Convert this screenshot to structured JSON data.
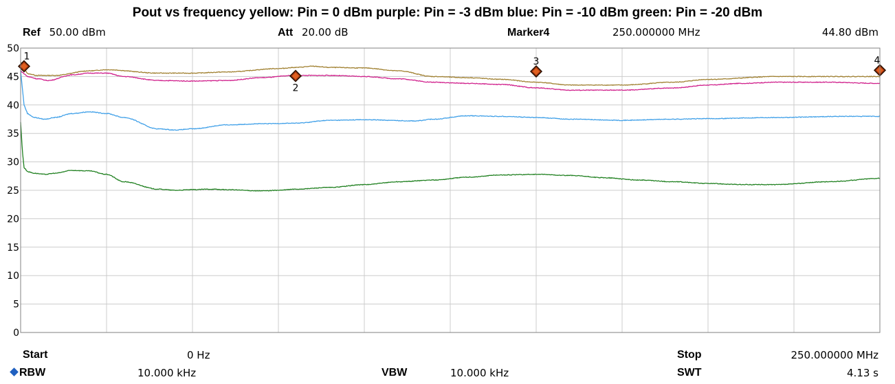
{
  "title": "Pout vs frequency     yellow: Pin = 0 dBm   purple: Pin = -3 dBm   blue: Pin = -10 dBm   green: Pin = -20 dBm",
  "header": {
    "ref_label": "Ref",
    "ref_value": "50.00 dBm",
    "att_label": "Att",
    "att_value": "20.00 dB",
    "marker_label": "Marker4",
    "marker_freq": "250.000000 MHz",
    "marker_level": "44.80 dBm"
  },
  "footer": {
    "start_label": "Start",
    "start_value": "0 Hz",
    "stop_label": "Stop",
    "stop_value": "250.000000 MHz",
    "rbw_label": "RBW",
    "rbw_value": "10.000 kHz",
    "vbw_label": "VBW",
    "vbw_value": "10.000 kHz",
    "swt_label": "SWT",
    "swt_value": "4.13 s"
  },
  "chart_data": {
    "type": "line",
    "xlim": [
      0,
      250
    ],
    "ylim": [
      0,
      50
    ],
    "yticks": [
      "50",
      "45",
      "40",
      "35",
      "30",
      "25",
      "20",
      "15",
      "10",
      "5",
      "0"
    ],
    "grid": true,
    "colors": {
      "yellow": "#a08030",
      "purple": "#d0208c",
      "blue": "#40a0e8",
      "green": "#208020"
    },
    "series": [
      {
        "color": "yellow",
        "x": [
          0,
          2,
          5,
          10,
          20,
          25,
          40,
          50,
          60,
          75,
          80,
          85,
          90,
          100,
          110,
          120,
          130,
          140,
          150,
          160,
          175,
          190,
          200,
          220,
          240,
          250
        ],
        "y": [
          47.5,
          45.5,
          45.2,
          45.2,
          46.0,
          46.2,
          45.6,
          45.6,
          45.8,
          46.4,
          46.6,
          46.8,
          46.6,
          46.5,
          46.0,
          45.0,
          44.8,
          44.5,
          44.0,
          43.5,
          43.5,
          44.0,
          44.5,
          45.0,
          45.0,
          45.0
        ]
      },
      {
        "color": "purple",
        "x": [
          0,
          2,
          5,
          8,
          15,
          20,
          25,
          30,
          40,
          50,
          60,
          70,
          80,
          90,
          100,
          110,
          120,
          130,
          140,
          150,
          160,
          175,
          190,
          200,
          210,
          220,
          235,
          250
        ],
        "y": [
          46.0,
          45.0,
          44.6,
          44.3,
          45.3,
          45.6,
          45.6,
          45.0,
          44.3,
          44.2,
          44.3,
          44.8,
          45.2,
          45.2,
          45.0,
          44.6,
          44.0,
          43.8,
          43.6,
          43.0,
          42.6,
          42.6,
          43.0,
          43.5,
          43.8,
          44.0,
          44.0,
          43.8
        ]
      },
      {
        "color": "blue",
        "x": [
          0,
          0.5,
          1,
          2,
          4,
          7,
          10,
          15,
          20,
          25,
          30,
          40,
          45,
          50,
          60,
          70,
          80,
          90,
          100,
          115,
          120,
          130,
          140,
          150,
          160,
          175,
          190,
          200,
          220,
          240,
          250
        ],
        "y": [
          46.0,
          43.0,
          40.0,
          38.5,
          37.8,
          37.5,
          37.8,
          38.5,
          38.8,
          38.5,
          37.8,
          35.8,
          35.6,
          35.8,
          36.5,
          36.7,
          36.8,
          37.3,
          37.4,
          37.2,
          37.5,
          38.1,
          38.0,
          37.8,
          37.5,
          37.3,
          37.5,
          37.6,
          37.8,
          38.0,
          38.0
        ]
      },
      {
        "color": "green",
        "x": [
          0,
          0.5,
          1,
          2,
          4,
          7,
          10,
          15,
          20,
          25,
          30,
          40,
          45,
          50,
          55,
          60,
          70,
          75,
          80,
          90,
          100,
          110,
          120,
          130,
          140,
          150,
          160,
          170,
          180,
          190,
          200,
          210,
          220,
          235,
          250
        ],
        "y": [
          37.0,
          32.0,
          29.0,
          28.3,
          28.0,
          27.8,
          28.0,
          28.5,
          28.4,
          27.8,
          26.5,
          25.2,
          25.0,
          25.1,
          25.2,
          25.1,
          24.9,
          25.0,
          25.2,
          25.5,
          26.0,
          26.5,
          26.8,
          27.3,
          27.7,
          27.8,
          27.6,
          27.2,
          26.8,
          26.5,
          26.2,
          26.0,
          26.0,
          26.5,
          27.1
        ]
      }
    ],
    "markers": [
      {
        "label": "1",
        "x": 1,
        "y": 46.8
      },
      {
        "label": "2",
        "x": 80,
        "y": 45.1
      },
      {
        "label": "3",
        "x": 150,
        "y": 45.9
      },
      {
        "label": "4",
        "x": 250,
        "y": 46.1
      }
    ]
  }
}
